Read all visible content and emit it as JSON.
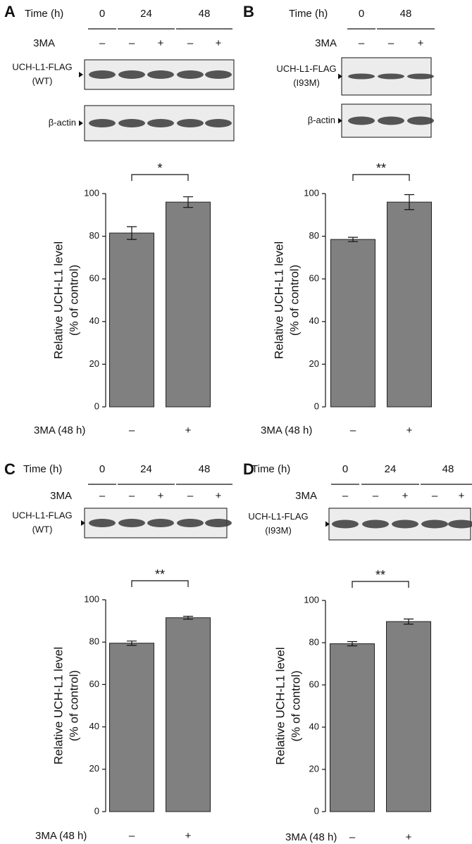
{
  "panels": [
    {
      "label": "A",
      "time_label": "Time (h)",
      "times": [
        "0",
        "24",
        "48"
      ],
      "drug_label": "3MA",
      "treatments": [
        "–",
        "–",
        "+",
        "–",
        "+"
      ],
      "blots": [
        {
          "label": [
            "UCH-L1-FLAG",
            "(WT)"
          ]
        },
        {
          "label": [
            "β-actin"
          ]
        }
      ]
    },
    {
      "label": "B",
      "time_label": "Time (h)",
      "times": [
        "0",
        "48"
      ],
      "drug_label": "3MA",
      "treatments": [
        "–",
        "–",
        "+"
      ],
      "blots": [
        {
          "label": [
            "UCH-L1-FLAG",
            "(I93M)"
          ]
        },
        {
          "label": [
            "β-actin"
          ]
        }
      ]
    },
    {
      "label": "C",
      "time_label": "Time (h)",
      "times": [
        "0",
        "24",
        "48"
      ],
      "drug_label": "3MA",
      "treatments": [
        "–",
        "–",
        "+",
        "–",
        "+"
      ],
      "blots": [
        {
          "label": [
            "UCH-L1-FLAG",
            "(WT)"
          ]
        }
      ]
    },
    {
      "label": "D",
      "time_label": "Time (h)",
      "times": [
        "0",
        "24",
        "48"
      ],
      "drug_label": "3MA",
      "treatments": [
        "–",
        "–",
        "+",
        "–",
        "+"
      ],
      "blots": [
        {
          "label": [
            "UCH-L1-FLAG",
            "(I93M)"
          ]
        }
      ]
    }
  ],
  "chart_data": [
    {
      "type": "bar",
      "ylabel": [
        "Relative UCH-L1 level",
        "(% of control)"
      ],
      "xlabel": "3MA (48 h)",
      "categories": [
        "–",
        "+"
      ],
      "values": [
        81.5,
        96
      ],
      "errors": [
        3,
        2.5
      ],
      "significance": "*",
      "ylim": [
        0,
        100
      ],
      "yticks": [
        0,
        20,
        40,
        60,
        80,
        100
      ],
      "color": "#808080"
    },
    {
      "type": "bar",
      "ylabel": [
        "Relative UCH-L1 level",
        "(% of control)"
      ],
      "xlabel": "3MA (48 h)",
      "categories": [
        "–",
        "+"
      ],
      "values": [
        78.5,
        96
      ],
      "errors": [
        1,
        3.5
      ],
      "significance": "**",
      "ylim": [
        0,
        100
      ],
      "yticks": [
        0,
        20,
        40,
        60,
        80,
        100
      ],
      "color": "#808080"
    },
    {
      "type": "bar",
      "ylabel": [
        "Relative UCH-L1 level",
        "(% of control)"
      ],
      "xlabel": "3MA (48 h)",
      "categories": [
        "–",
        "+"
      ],
      "values": [
        79.5,
        91.5
      ],
      "errors": [
        1,
        0.7
      ],
      "significance": "**",
      "ylim": [
        0,
        100
      ],
      "yticks": [
        0,
        20,
        40,
        60,
        80,
        100
      ],
      "color": "#808080"
    },
    {
      "type": "bar",
      "ylabel": [
        "Relative UCH-L1 level",
        "(% of control)"
      ],
      "xlabel": "3MA (48 h)",
      "categories": [
        "–",
        "+"
      ],
      "values": [
        79.5,
        90
      ],
      "errors": [
        1,
        1.2
      ],
      "significance": "**",
      "ylim": [
        0,
        100
      ],
      "yticks": [
        0,
        20,
        40,
        60,
        80,
        100
      ],
      "color": "#808080"
    }
  ]
}
